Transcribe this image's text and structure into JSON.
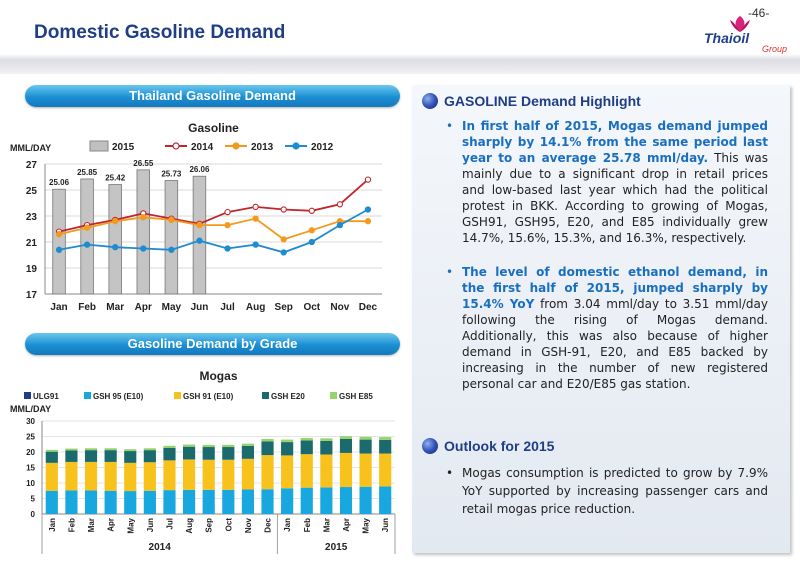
{
  "page": {
    "number": "-46-",
    "title": "Domestic Gasoline Demand",
    "logo": {
      "name": "Thaioil",
      "sub": "Group",
      "icon": "orchid-icon"
    }
  },
  "left": {
    "banner1": "Thailand Gasoline Demand",
    "banner2": "Gasoline Demand by Grade"
  },
  "right": {
    "highlight": {
      "heading": "GASOLINE Demand Highlight",
      "b1_hl": "In first half of 2015, Mogas demand jumped sharply by 14.1% from the same period last year to an average 25.78 mml/day.",
      "b1_rest": " This was mainly due to a significant drop in retail prices and low-based last year which had the political protest in BKK. According to growing of Mogas, GSH91, GSH95, E20, and E85 individually grew 14.7%, 15.6%, 15.3%, and 16.3%, respectively.",
      "b2_hl": "The level of domestic ethanol demand, in the first half of 2015, jumped sharply by 15.4% YoY",
      "b2_rest": " from 3.04 mml/day to 3.51 mml/day following the rising of Mogas demand. Additionally, this was also because of higher demand in GSH-91, E20, and E85 backed by increasing in the number of new registered personal car and E20/E85 gas station."
    },
    "outlook": {
      "heading": "Outlook for 2015",
      "b1": "Mogas consumption is predicted to grow by 7.9% YoY supported by increasing passenger cars and retail mogas price reduction."
    }
  },
  "chart_data": [
    {
      "type": "line",
      "title": "Gasoline",
      "ylabel": "MML/DAY",
      "categories": [
        "Jan",
        "Feb",
        "Mar",
        "Apr",
        "May",
        "Jun",
        "Jul",
        "Aug",
        "Sep",
        "Oct",
        "Nov",
        "Dec"
      ],
      "ylim": [
        17,
        27
      ],
      "yticks": [
        17,
        19,
        21,
        23,
        25,
        27
      ],
      "legend_position": "top",
      "bar_series": {
        "name": "2015",
        "color": "#c0c0c0",
        "values": [
          25.06,
          25.85,
          25.42,
          26.55,
          25.73,
          26.06
        ],
        "labels": [
          "25.06",
          "25.85",
          "25.42",
          "26.55",
          "25.73",
          "26.06"
        ]
      },
      "series": [
        {
          "name": "2014",
          "color": "#c0262c",
          "marker": "open",
          "values": [
            21.8,
            22.3,
            22.7,
            23.2,
            22.8,
            22.4,
            23.3,
            23.7,
            23.5,
            23.4,
            23.9,
            25.8
          ]
        },
        {
          "name": "2013",
          "color": "#f39a1e",
          "marker": "filled",
          "values": [
            21.6,
            22.1,
            22.6,
            22.9,
            22.7,
            22.3,
            22.3,
            22.8,
            21.2,
            21.9,
            22.6,
            22.6
          ]
        },
        {
          "name": "2012",
          "color": "#1f8bd0",
          "marker": "filled",
          "values": [
            20.4,
            20.8,
            20.6,
            20.5,
            20.4,
            21.1,
            20.5,
            20.8,
            20.2,
            21.0,
            22.3,
            23.5
          ]
        }
      ]
    },
    {
      "type": "bar",
      "stacked": true,
      "title": "Mogas",
      "ylabel": "MML/DAY",
      "ylim": [
        0,
        30
      ],
      "yticks": [
        0,
        5,
        10,
        15,
        20,
        25,
        30
      ],
      "legend_position": "top",
      "categories": [
        "Jan",
        "Feb",
        "Mar",
        "Apr",
        "May",
        "Jun",
        "Jul",
        "Aug",
        "Sep",
        "Oct",
        "Nov",
        "Dec",
        "Jan",
        "Feb",
        "Mar",
        "Apr",
        "May",
        "Jun"
      ],
      "groups": [
        {
          "label": "2014",
          "count": 12
        },
        {
          "label": "2015",
          "count": 6
        }
      ],
      "series": [
        {
          "name": "ULG91",
          "color": "#1f3e86",
          "values": [
            0,
            0,
            0,
            0,
            0,
            0,
            0,
            0,
            0,
            0,
            0,
            0,
            0,
            0,
            0,
            0,
            0,
            0
          ]
        },
        {
          "name": "GSH 95 (E10)",
          "color": "#19a7e0",
          "values": [
            7.5,
            7.6,
            7.6,
            7.5,
            7.4,
            7.5,
            7.7,
            7.8,
            7.8,
            7.8,
            7.9,
            8.0,
            8.3,
            8.5,
            8.6,
            8.7,
            8.8,
            8.9
          ]
        },
        {
          "name": "GSH 91 (E10)",
          "color": "#f7c21b",
          "values": [
            9.0,
            9.2,
            9.2,
            9.3,
            9.1,
            9.2,
            9.6,
            9.8,
            9.7,
            9.7,
            9.9,
            11.0,
            10.6,
            10.8,
            10.6,
            11.0,
            10.7,
            10.6
          ]
        },
        {
          "name": "GSH E20",
          "color": "#1b6a6e",
          "values": [
            3.6,
            3.7,
            3.8,
            3.8,
            3.8,
            3.9,
            4.0,
            4.1,
            4.1,
            4.1,
            4.2,
            4.4,
            4.3,
            4.4,
            4.4,
            4.5,
            4.5,
            4.4
          ]
        },
        {
          "name": "GSH E85",
          "color": "#96d36a",
          "values": [
            0.6,
            0.6,
            0.6,
            0.6,
            0.6,
            0.6,
            0.7,
            0.7,
            0.7,
            0.7,
            0.7,
            0.8,
            0.8,
            0.8,
            0.8,
            0.9,
            0.9,
            0.9
          ]
        }
      ]
    }
  ]
}
